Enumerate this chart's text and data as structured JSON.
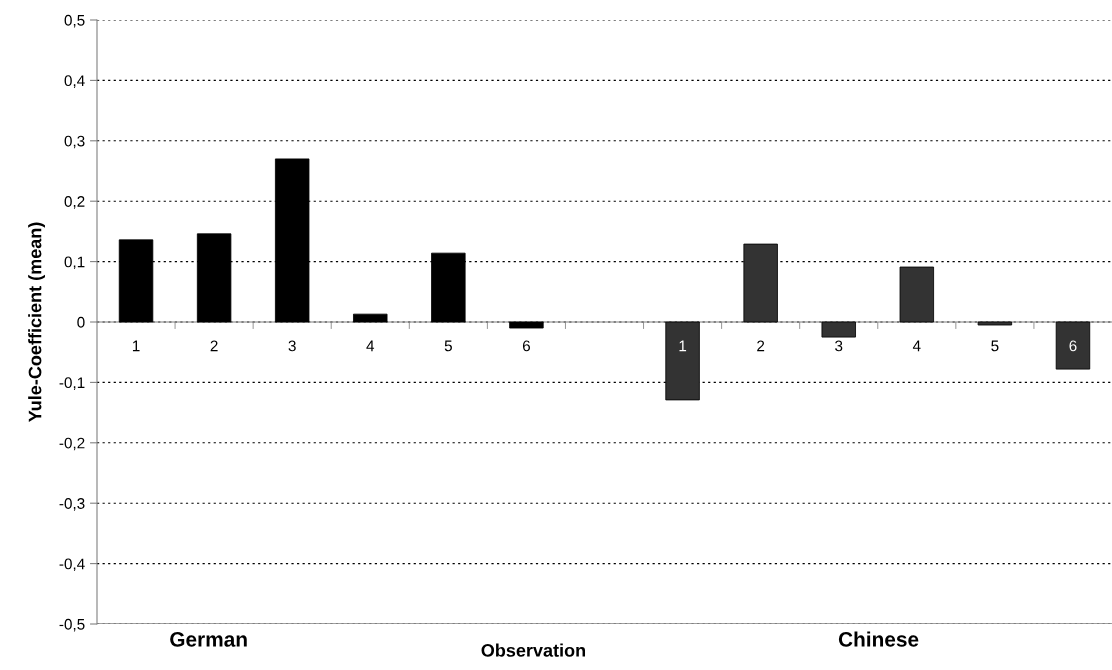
{
  "chart_data": {
    "type": "bar",
    "ylabel": "Yule-Coefficient (mean)",
    "xlabel": "Observation",
    "categories": [
      "1",
      "2",
      "3",
      "4",
      "5",
      "6",
      null,
      "1",
      "2",
      "3",
      "4",
      "5",
      "6"
    ],
    "values": [
      0.136,
      0.146,
      0.27,
      0.013,
      0.114,
      -0.01,
      null,
      -0.129,
      0.129,
      -0.025,
      0.091,
      -0.005,
      -0.078
    ],
    "colors": [
      "#000000",
      "#000000",
      "#000000",
      "#000000",
      "#000000",
      "#000000",
      "#000000",
      "#333333",
      "#333333",
      "#333333",
      "#333333",
      "#333333",
      "#333333"
    ],
    "ylim": [
      -0.5,
      0.5
    ],
    "yticks": [
      {
        "value": -0.5,
        "label": "-0,5"
      },
      {
        "value": -0.4,
        "label": "-0,4"
      },
      {
        "value": -0.3,
        "label": "-0,3"
      },
      {
        "value": -0.2,
        "label": "-0,2"
      },
      {
        "value": -0.1,
        "label": "-0,1"
      },
      0,
      {
        "value": 0.1,
        "label": "0,1"
      },
      {
        "value": 0.2,
        "label": "0,2"
      },
      {
        "value": 0.3,
        "label": "0,3"
      },
      {
        "value": 0.4,
        "label": "0,4"
      },
      {
        "value": 0.5,
        "label": "0,5"
      }
    ],
    "grid": "y",
    "legend": false,
    "annotations": [
      "German",
      "Chinese"
    ]
  }
}
